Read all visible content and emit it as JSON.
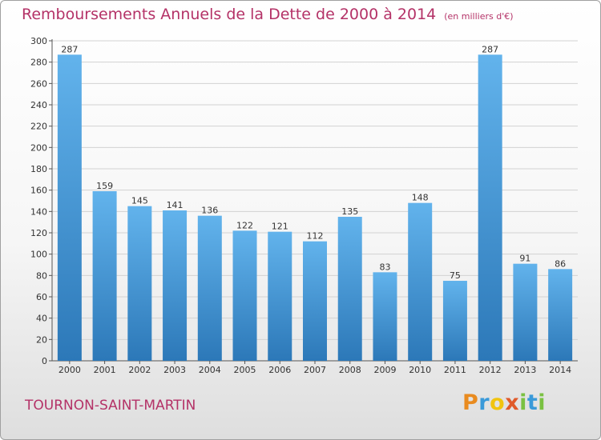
{
  "chart_data": {
    "type": "bar",
    "title": "Remboursements Annuels de la Dette de 2000 à 2014",
    "unit": "(en milliers d'€)",
    "categories": [
      "2000",
      "2001",
      "2002",
      "2003",
      "2004",
      "2005",
      "2006",
      "2007",
      "2008",
      "2009",
      "2010",
      "2011",
      "2012",
      "2013",
      "2014"
    ],
    "values": [
      287,
      159,
      145,
      141,
      136,
      122,
      121,
      112,
      135,
      83,
      148,
      75,
      287,
      91,
      86
    ],
    "yticks": [
      0,
      20,
      40,
      60,
      80,
      100,
      120,
      140,
      160,
      180,
      200,
      220,
      240,
      260,
      280,
      300
    ],
    "ylim": [
      0,
      300
    ],
    "grid": true,
    "xlabel": "",
    "ylabel": ""
  },
  "location": "TOURNON-SAINT-MARTIN",
  "logo": {
    "letters": [
      "P",
      "r",
      "o",
      "x",
      "i",
      "t",
      "i"
    ]
  },
  "colors": {
    "bar": "#2e7fc1",
    "bar_light": "#62b3ec",
    "title": "#b43267",
    "grid": "#d0d0d0"
  }
}
